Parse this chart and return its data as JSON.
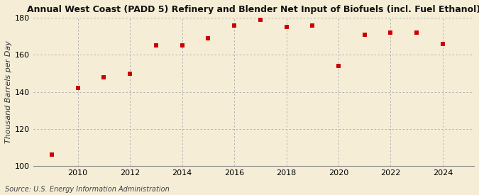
{
  "title": "Annual West Coast (PADD 5) Refinery and Blender Net Input of Biofuels (incl. Fuel Ethanol)",
  "ylabel": "Thousand Barrels per Day",
  "source": "Source: U.S. Energy Information Administration",
  "years": [
    2009,
    2010,
    2011,
    2012,
    2013,
    2014,
    2015,
    2016,
    2017,
    2018,
    2019,
    2020,
    2021,
    2022,
    2023,
    2024
  ],
  "values": [
    106,
    142,
    148,
    150,
    165,
    165,
    169,
    176,
    179,
    175,
    176,
    154,
    171,
    172,
    172,
    166
  ],
  "marker_color": "#CC0000",
  "bg_color": "#F5EDD6",
  "grid_color": "#AAAAAA",
  "ylim": [
    100,
    180
  ],
  "yticks": [
    100,
    120,
    140,
    160,
    180
  ],
  "xticks": [
    2010,
    2012,
    2014,
    2016,
    2018,
    2020,
    2022,
    2024
  ],
  "xlim": [
    2008.3,
    2025.2
  ],
  "title_fontsize": 9,
  "label_fontsize": 8,
  "tick_fontsize": 8,
  "source_fontsize": 7
}
